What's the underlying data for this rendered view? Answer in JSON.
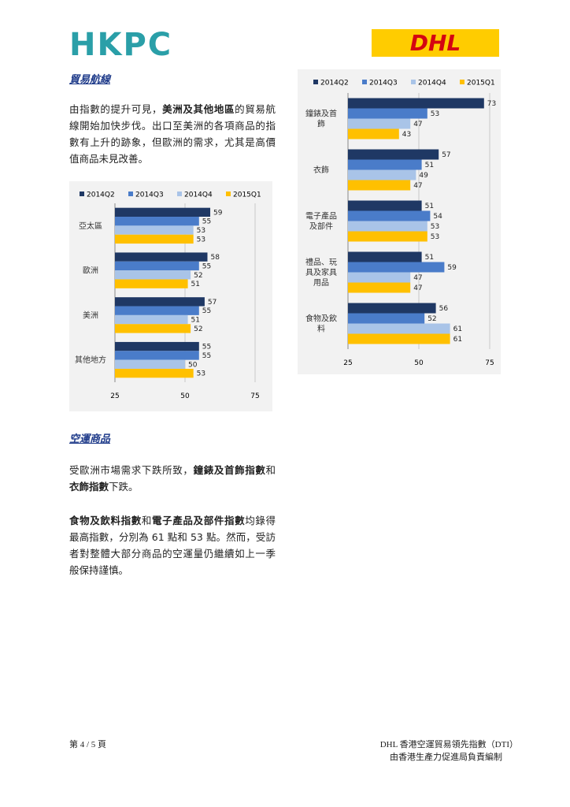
{
  "logos": {
    "hkpc": "HKPC",
    "dhl": "DHL"
  },
  "sections": [
    {
      "title": "貿易航線",
      "paragraphs": [
        {
          "runs": [
            {
              "text": "由指數的提升可見，",
              "bold": false
            },
            {
              "text": "美洲及其他地區",
              "bold": true
            },
            {
              "text": "的貿易航線開始加快步伐。出口至美洲的各項商品的指數有上升的跡象，但歐洲的需求，尤其是高價值商品未見改善。",
              "bold": false
            }
          ]
        }
      ]
    },
    {
      "title": "空運商品",
      "paragraphs": [
        {
          "runs": [
            {
              "text": "受歐洲市場需求下跌所致，",
              "bold": false
            },
            {
              "text": "鐘錶及首飾指數",
              "bold": true
            },
            {
              "text": "和",
              "bold": false
            },
            {
              "text": "衣飾指數",
              "bold": true
            },
            {
              "text": "下跌。",
              "bold": false
            }
          ]
        },
        {
          "runs": [
            {
              "text": "食物及飲料指數",
              "bold": true
            },
            {
              "text": "和",
              "bold": false
            },
            {
              "text": "電子產品及部件指數",
              "bold": true
            },
            {
              "text": "均錄得最高指數，分別為 61 點和 53 點。然而，受訪者對整體大部分商品的空運量仍繼續如上一季般保持謹慎。",
              "bold": false
            }
          ]
        }
      ]
    }
  ],
  "chart_data": [
    {
      "type": "barh",
      "categories": [
        "亞太區",
        "歐洲",
        "美洲",
        "其他地方"
      ],
      "series": [
        {
          "name": "2014Q2",
          "color": "#1f3864",
          "values": [
            59,
            58,
            57,
            55
          ]
        },
        {
          "name": "2014Q3",
          "color": "#4a7cc9",
          "values": [
            55,
            55,
            55,
            55
          ]
        },
        {
          "name": "2014Q4",
          "color": "#a9c4e8",
          "values": [
            53,
            52,
            51,
            50
          ]
        },
        {
          "name": "2015Q1",
          "color": "#ffc000",
          "values": [
            53,
            51,
            52,
            53
          ]
        }
      ],
      "xlim": [
        25,
        75
      ],
      "xticks": [
        25,
        50,
        75
      ],
      "grid": true,
      "legend": "top"
    },
    {
      "type": "barh",
      "categories": [
        "鐘錶及首飾",
        "衣飾",
        "電子產品及部件",
        "禮品、玩具及家具用品",
        "食物及飲料"
      ],
      "series": [
        {
          "name": "2014Q2",
          "color": "#1f3864",
          "values": [
            73,
            57,
            51,
            51,
            56
          ]
        },
        {
          "name": "2014Q3",
          "color": "#4a7cc9",
          "values": [
            53,
            51,
            54,
            59,
            52
          ]
        },
        {
          "name": "2014Q4",
          "color": "#a9c4e8",
          "values": [
            47,
            49,
            53,
            47,
            61
          ]
        },
        {
          "name": "2015Q1",
          "color": "#ffc000",
          "values": [
            43,
            47,
            53,
            47,
            61
          ]
        }
      ],
      "xlim": [
        25,
        75
      ],
      "xticks": [
        25,
        50,
        75
      ],
      "grid": true,
      "legend": "top"
    }
  ],
  "footer": {
    "page": "第 4 / 5 頁",
    "line1": "DHL 香港空運貿易領先指數（DTI）",
    "line2": "由香港生產力促進局負責編制"
  }
}
